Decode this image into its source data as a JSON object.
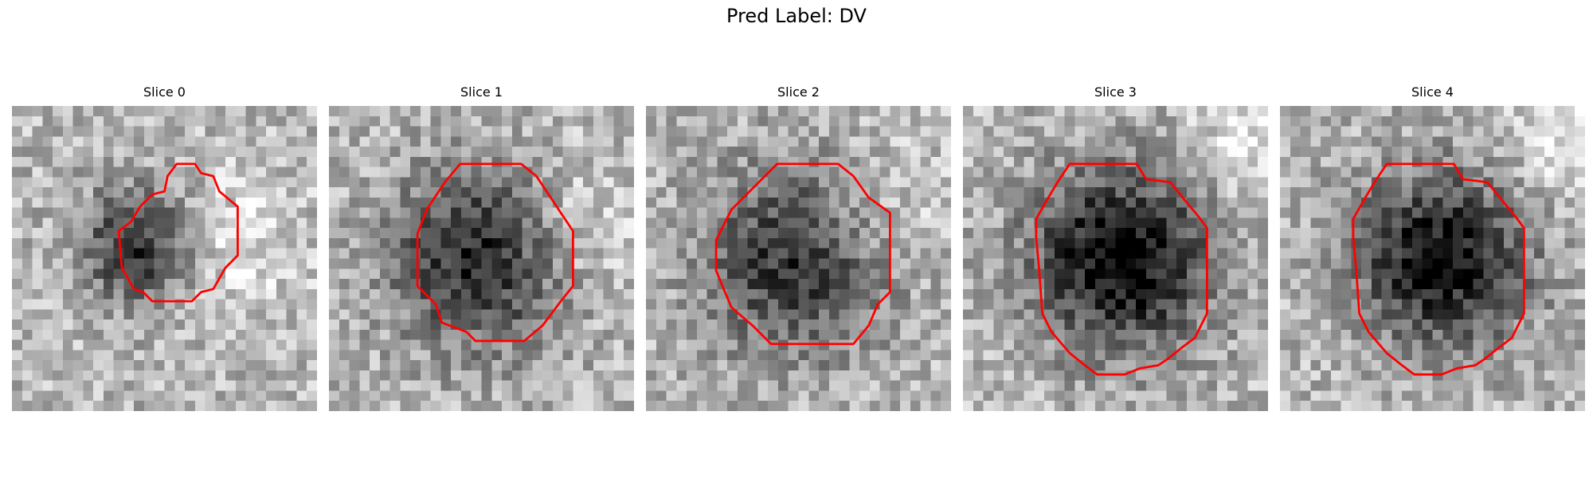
{
  "figure": {
    "title": "Pred Label: DV"
  },
  "panels": [
    {
      "title": "Slice 0",
      "dark_center": [
        4.2,
        4.6
      ],
      "bright_center": [
        7.2,
        4.5
      ],
      "spread": 3.0,
      "dark_depth": 0.55,
      "seed": 11
    },
    {
      "title": "Slice 1",
      "dark_center": [
        5.0,
        5.0
      ],
      "bright_center": [
        8.0,
        4.0
      ],
      "spread": 4.5,
      "dark_depth": 0.6,
      "seed": 23
    },
    {
      "title": "Slice 2",
      "dark_center": [
        5.0,
        5.0
      ],
      "bright_center": [
        7.5,
        3.5
      ],
      "spread": 4.8,
      "dark_depth": 0.55,
      "seed": 37
    },
    {
      "title": "Slice 3",
      "dark_center": [
        5.2,
        5.0
      ],
      "bright_center": [
        9.5,
        1.0
      ],
      "spread": 4.6,
      "dark_depth": 0.75,
      "seed": 41
    },
    {
      "title": "Slice 4",
      "dark_center": [
        5.3,
        5.0
      ],
      "bright_center": [
        9.5,
        1.0
      ],
      "spread": 4.4,
      "dark_depth": 0.7,
      "seed": 53
    }
  ],
  "contours": [
    [
      [
        5.4,
        1.9
      ],
      [
        6.0,
        1.9
      ],
      [
        6.2,
        2.2
      ],
      [
        6.6,
        2.3
      ],
      [
        6.8,
        2.8
      ],
      [
        7.4,
        3.3
      ],
      [
        7.4,
        4.9
      ],
      [
        7.0,
        5.3
      ],
      [
        6.6,
        6.0
      ],
      [
        6.2,
        6.1
      ],
      [
        5.9,
        6.4
      ],
      [
        4.6,
        6.4
      ],
      [
        4.3,
        6.1
      ],
      [
        4.0,
        6.0
      ],
      [
        3.6,
        5.3
      ],
      [
        3.5,
        4.1
      ],
      [
        3.9,
        3.8
      ],
      [
        4.2,
        3.3
      ],
      [
        4.6,
        2.9
      ],
      [
        5.0,
        2.8
      ],
      [
        5.1,
        2.3
      ]
    ],
    [
      [
        4.3,
        1.9
      ],
      [
        6.3,
        1.9
      ],
      [
        6.8,
        2.3
      ],
      [
        7.6,
        3.5
      ],
      [
        8.0,
        4.1
      ],
      [
        8.0,
        5.9
      ],
      [
        7.6,
        6.4
      ],
      [
        7.0,
        7.2
      ],
      [
        6.4,
        7.7
      ],
      [
        4.8,
        7.7
      ],
      [
        4.5,
        7.4
      ],
      [
        3.7,
        7.1
      ],
      [
        3.5,
        6.5
      ],
      [
        2.9,
        5.9
      ],
      [
        2.9,
        4.2
      ],
      [
        3.2,
        3.4
      ],
      [
        3.8,
        2.5
      ]
    ],
    [
      [
        4.3,
        1.9
      ],
      [
        6.3,
        1.9
      ],
      [
        6.8,
        2.3
      ],
      [
        7.3,
        3.0
      ],
      [
        8.0,
        3.5
      ],
      [
        8.0,
        6.1
      ],
      [
        7.6,
        6.5
      ],
      [
        7.3,
        7.2
      ],
      [
        6.8,
        7.8
      ],
      [
        4.1,
        7.8
      ],
      [
        3.5,
        7.2
      ],
      [
        2.8,
        6.6
      ],
      [
        2.3,
        5.4
      ],
      [
        2.3,
        4.4
      ],
      [
        2.8,
        3.4
      ],
      [
        3.5,
        2.7
      ]
    ],
    [
      [
        3.5,
        1.9
      ],
      [
        5.7,
        1.9
      ],
      [
        6.0,
        2.4
      ],
      [
        6.8,
        2.5
      ],
      [
        7.2,
        3.0
      ],
      [
        7.7,
        3.6
      ],
      [
        8.0,
        4.0
      ],
      [
        8.0,
        6.8
      ],
      [
        7.6,
        7.6
      ],
      [
        7.2,
        7.9
      ],
      [
        6.7,
        8.3
      ],
      [
        6.4,
        8.5
      ],
      [
        5.8,
        8.6
      ],
      [
        5.3,
        8.8
      ],
      [
        4.4,
        8.8
      ],
      [
        4.0,
        8.5
      ],
      [
        3.5,
        8.1
      ],
      [
        2.9,
        7.4
      ],
      [
        2.6,
        6.8
      ],
      [
        2.5,
        5.4
      ],
      [
        2.4,
        4.3
      ],
      [
        2.4,
        3.7
      ],
      [
        2.8,
        3.0
      ],
      [
        3.1,
        2.5
      ]
    ],
    [
      [
        3.5,
        1.9
      ],
      [
        5.7,
        1.9
      ],
      [
        6.0,
        2.4
      ],
      [
        6.8,
        2.5
      ],
      [
        7.2,
        3.0
      ],
      [
        7.7,
        3.6
      ],
      [
        8.0,
        4.0
      ],
      [
        8.0,
        6.8
      ],
      [
        7.6,
        7.6
      ],
      [
        7.2,
        7.9
      ],
      [
        6.7,
        8.3
      ],
      [
        6.4,
        8.5
      ],
      [
        5.8,
        8.6
      ],
      [
        5.3,
        8.8
      ],
      [
        4.4,
        8.8
      ],
      [
        4.0,
        8.5
      ],
      [
        3.5,
        8.1
      ],
      [
        2.9,
        7.4
      ],
      [
        2.6,
        6.8
      ],
      [
        2.5,
        5.4
      ],
      [
        2.4,
        4.3
      ],
      [
        2.4,
        3.7
      ],
      [
        2.8,
        3.0
      ],
      [
        3.1,
        2.5
      ]
    ]
  ],
  "style": {
    "contour_color": "#ff0000"
  }
}
